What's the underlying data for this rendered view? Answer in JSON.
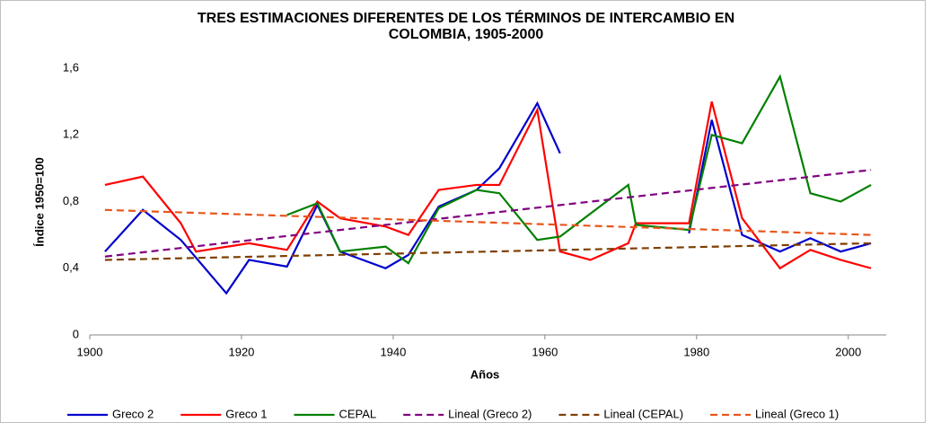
{
  "chart_data": {
    "type": "line",
    "title": "TRES ESTIMACIONES DIFERENTES DE LOS TÉRMINOS DE INTERCAMBIO EN\nCOLOMBIA, 1905-2000",
    "x_label": "Años",
    "y_label": "Índice 1950=100",
    "xlim": [
      1900,
      2005
    ],
    "xticks": [
      1900,
      1920,
      1940,
      1960,
      1980,
      2000
    ],
    "ylim": [
      0,
      1.6
    ],
    "yticks": [
      0,
      {
        "value": 0.4,
        "label": "0,4"
      },
      {
        "value": 0.8,
        "label": "0,8"
      },
      {
        "value": 1.2,
        "label": "1,2"
      },
      {
        "value": 1.6,
        "label": "1,6"
      }
    ],
    "grid": false,
    "legend": "bottom",
    "series": [
      {
        "name": "Greco 2",
        "color": "#0000cc",
        "dashed": false,
        "x": [
          1902,
          1907,
          1912,
          1918,
          1921,
          1926,
          1930,
          1933,
          1939,
          1942,
          1946,
          1951,
          1954,
          1959,
          1962,
          1970,
          1979,
          1982,
          1986,
          1991,
          1995,
          1999,
          2003
        ],
        "values": [
          0.5,
          0.75,
          0.57,
          0.25,
          0.45,
          0.41,
          0.78,
          0.5,
          0.4,
          0.48,
          0.77,
          0.87,
          1.0,
          1.39,
          1.09,
          null,
          0.61,
          1.29,
          0.6,
          0.5,
          0.58,
          0.5,
          0.55
        ]
      },
      {
        "name": "Greco 1",
        "color": "#ff0000",
        "dashed": false,
        "x": [
          1902,
          1907,
          1912,
          1914,
          1921,
          1926,
          1930,
          1933,
          1939,
          1942,
          1946,
          1951,
          1954,
          1959,
          1962,
          1966,
          1971,
          1972,
          1979,
          1982,
          1986,
          1991,
          1995,
          1999,
          2003
        ],
        "values": [
          0.9,
          0.95,
          0.67,
          0.5,
          0.55,
          0.51,
          0.8,
          0.7,
          0.65,
          0.6,
          0.87,
          0.9,
          0.9,
          1.35,
          0.5,
          0.45,
          0.55,
          0.67,
          0.67,
          1.4,
          0.7,
          0.4,
          0.51,
          0.45,
          0.4
        ]
      },
      {
        "name": "CEPAL",
        "color": "#008000",
        "dashed": false,
        "x": [
          1926,
          1930,
          1933,
          1939,
          1942,
          1946,
          1951,
          1954,
          1959,
          1962,
          1971,
          1972,
          1979,
          1982,
          1986,
          1991,
          1995,
          1999,
          2003
        ],
        "values": [
          0.72,
          0.79,
          0.5,
          0.53,
          0.43,
          0.76,
          0.87,
          0.85,
          0.57,
          0.59,
          0.9,
          0.66,
          0.63,
          1.2,
          1.15,
          1.55,
          0.85,
          0.8,
          0.9
        ]
      },
      {
        "name": "Lineal (Greco 2)",
        "color": "#800080",
        "dashed": true,
        "x": [
          1902,
          2003
        ],
        "values": [
          0.47,
          0.99
        ]
      },
      {
        "name": "Lineal (CEPAL)",
        "color": "#7f3f00",
        "dashed": true,
        "x": [
          1902,
          2003
        ],
        "values": [
          0.45,
          0.55
        ]
      },
      {
        "name": "Lineal (Greco 1)",
        "color": "#e8561c",
        "dashed": true,
        "x": [
          1902,
          2003
        ],
        "values": [
          0.75,
          0.6
        ]
      }
    ]
  }
}
